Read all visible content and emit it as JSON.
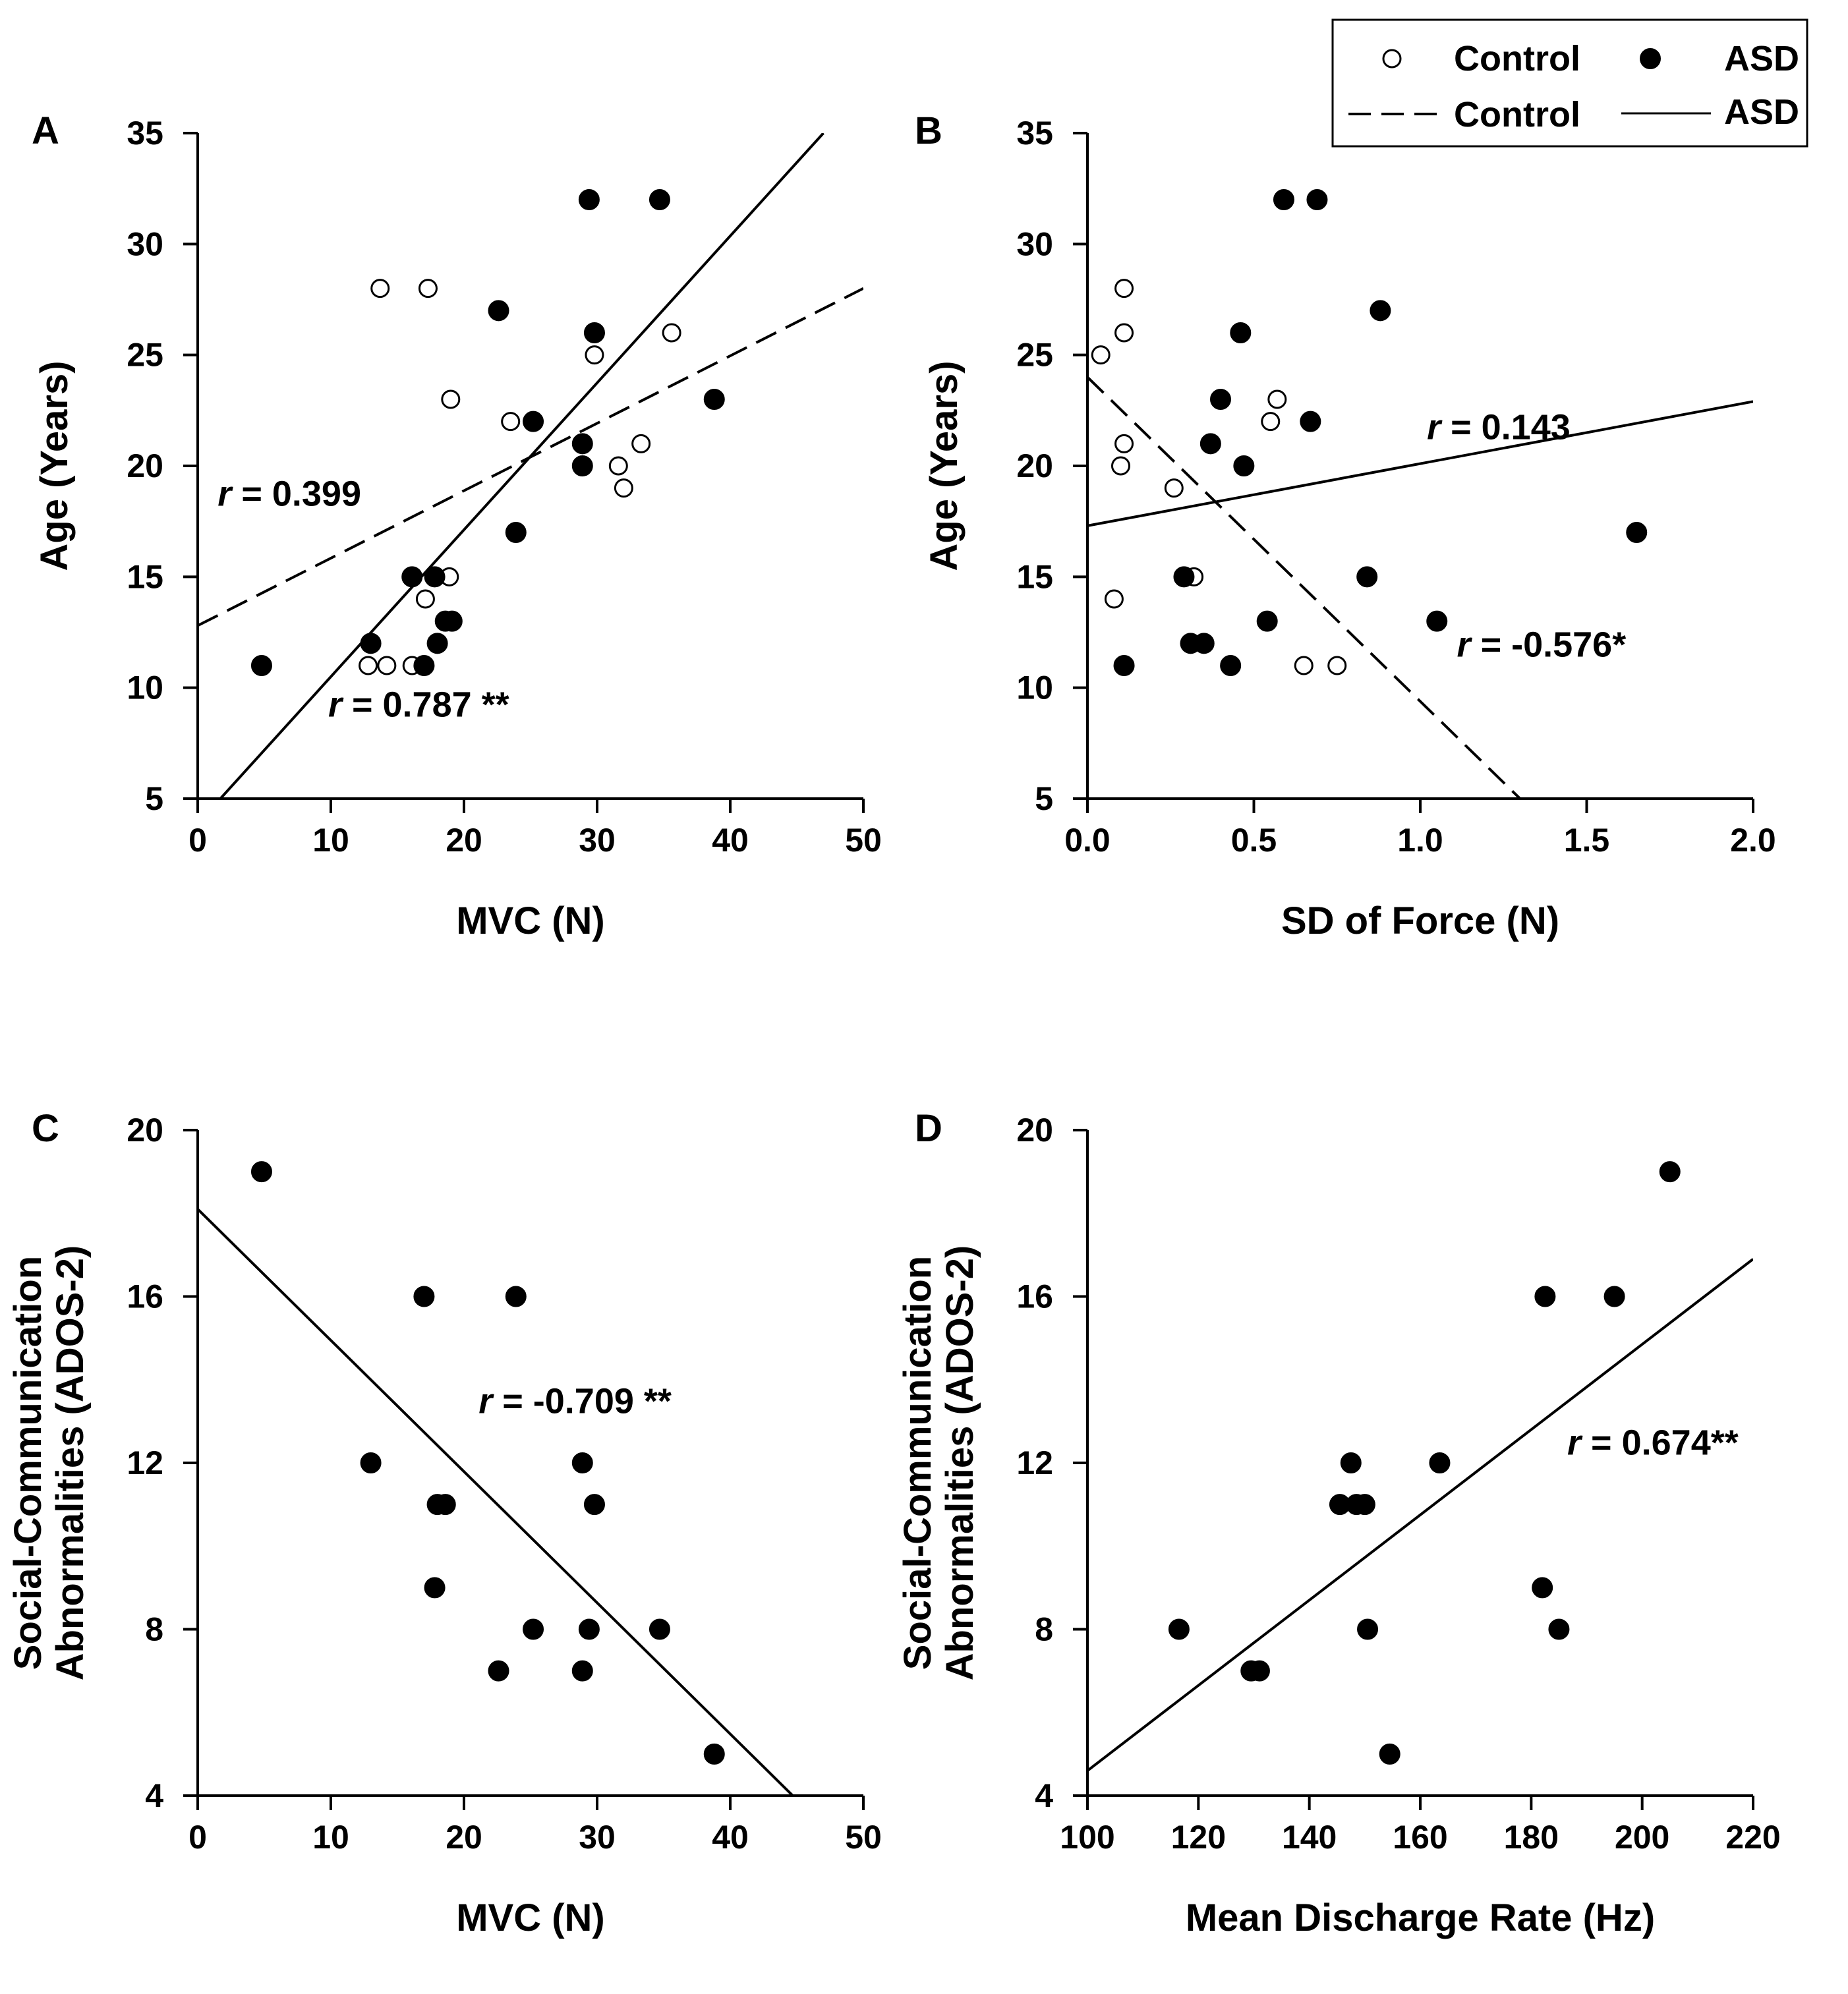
{
  "legend": {
    "entries": [
      {
        "key": "control_marker",
        "label": "Control",
        "marker": "open-circle"
      },
      {
        "key": "asd_marker",
        "label": "ASD",
        "marker": "filled-circle"
      },
      {
        "key": "control_line",
        "label": "Control",
        "line": "dashed"
      },
      {
        "key": "asd_line",
        "label": "ASD",
        "line": "solid"
      }
    ]
  },
  "chart_data": [
    {
      "panel": "A",
      "type": "scatter",
      "xlabel": "MVC (N)",
      "ylabel": "Age (Years)",
      "xlim": [
        0,
        50
      ],
      "ylim": [
        5,
        35
      ],
      "xticks": [
        "0",
        "10",
        "20",
        "30",
        "40",
        "50"
      ],
      "yticks": [
        "5",
        "10",
        "15",
        "20",
        "25",
        "30",
        "35"
      ],
      "series": [
        {
          "name": "Control",
          "marker": "open-circle",
          "points": [
            [
              13.7,
              28
            ],
            [
              17.3,
              28
            ],
            [
              19.0,
              23
            ],
            [
              23.5,
              22
            ],
            [
              29.8,
              25
            ],
            [
              35.6,
              26
            ],
            [
              31.6,
              20
            ],
            [
              32.0,
              19
            ],
            [
              33.3,
              21
            ],
            [
              17.1,
              14
            ],
            [
              18.9,
              15
            ],
            [
              12.8,
              11
            ],
            [
              14.2,
              11
            ],
            [
              16.1,
              11
            ]
          ],
          "fit": {
            "style": "dashed",
            "x": [
              0,
              50
            ],
            "y": [
              12.8,
              28.0
            ]
          }
        },
        {
          "name": "ASD",
          "marker": "filled-circle",
          "points": [
            [
              4.8,
              11
            ],
            [
              13.0,
              12
            ],
            [
              16.1,
              15
            ],
            [
              17.0,
              11
            ],
            [
              17.8,
              15
            ],
            [
              18.0,
              12
            ],
            [
              18.6,
              13
            ],
            [
              19.1,
              13
            ],
            [
              22.6,
              27
            ],
            [
              23.9,
              17
            ],
            [
              25.2,
              22
            ],
            [
              28.9,
              21
            ],
            [
              28.9,
              20
            ],
            [
              29.4,
              32
            ],
            [
              29.8,
              26
            ],
            [
              34.7,
              32
            ],
            [
              38.8,
              23
            ]
          ],
          "fit": {
            "style": "solid",
            "x": [
              1.7,
              47.0
            ],
            "y": [
              5.0,
              35.0
            ]
          }
        }
      ],
      "annotations": [
        {
          "r_label": "r",
          "rest": " = 0.399",
          "x": 1.5,
          "y": 18.2
        },
        {
          "r_label": "r",
          "rest": " = 0.787 **",
          "x": 9.8,
          "y": 8.7
        }
      ]
    },
    {
      "panel": "B",
      "type": "scatter",
      "xlabel": "SD of Force (N)",
      "ylabel": "Age (Years)",
      "xlim": [
        0.0,
        2.0
      ],
      "ylim": [
        5,
        35
      ],
      "xticks": [
        "0.0",
        "0.5",
        "1.0",
        "1.5",
        "2.0"
      ],
      "yticks": [
        "5",
        "10",
        "15",
        "20",
        "25",
        "30",
        "35"
      ],
      "series": [
        {
          "name": "Control",
          "marker": "open-circle",
          "points": [
            [
              0.04,
              25
            ],
            [
              0.11,
              28
            ],
            [
              0.11,
              26
            ],
            [
              0.11,
              21
            ],
            [
              0.1,
              20
            ],
            [
              0.26,
              19
            ],
            [
              0.55,
              22
            ],
            [
              0.57,
              23
            ],
            [
              0.32,
              15
            ],
            [
              0.08,
              14
            ],
            [
              0.65,
              11
            ],
            [
              0.75,
              11
            ]
          ],
          "fit": {
            "style": "dashed",
            "x": [
              0.0,
              1.3
            ],
            "y": [
              24.0,
              5.0
            ]
          }
        },
        {
          "name": "ASD",
          "marker": "filled-circle",
          "points": [
            [
              0.59,
              32
            ],
            [
              0.69,
              32
            ],
            [
              0.88,
              27
            ],
            [
              0.46,
              26
            ],
            [
              0.4,
              23
            ],
            [
              0.67,
              22
            ],
            [
              0.37,
              21
            ],
            [
              0.47,
              20
            ],
            [
              1.65,
              17
            ],
            [
              0.29,
              15
            ],
            [
              0.84,
              15
            ],
            [
              0.54,
              13
            ],
            [
              1.05,
              13
            ],
            [
              0.31,
              12
            ],
            [
              0.35,
              12
            ],
            [
              0.11,
              11
            ],
            [
              0.43,
              11
            ]
          ],
          "fit": {
            "style": "solid",
            "x": [
              0.0,
              2.0
            ],
            "y": [
              17.3,
              22.9
            ]
          }
        }
      ],
      "annotations": [
        {
          "r_label": "r",
          "rest": " = 0.143",
          "x": 1.02,
          "y": 21.2
        },
        {
          "r_label": "r",
          "rest": " = -0.576*",
          "x": 1.11,
          "y": 11.4
        }
      ]
    },
    {
      "panel": "C",
      "type": "scatter",
      "xlabel": "MVC (N)",
      "ylabel": [
        "Social-Communication",
        "Abnormalities (ADOS-2)"
      ],
      "xlim": [
        0,
        50
      ],
      "ylim": [
        4,
        20
      ],
      "xticks": [
        "0",
        "10",
        "20",
        "30",
        "40",
        "50"
      ],
      "yticks": [
        "4",
        "8",
        "12",
        "16",
        "20"
      ],
      "series": [
        {
          "name": "ASD",
          "marker": "filled-circle",
          "points": [
            [
              4.8,
              19
            ],
            [
              17.0,
              16
            ],
            [
              23.9,
              16
            ],
            [
              13.0,
              12
            ],
            [
              28.9,
              12
            ],
            [
              18.0,
              11
            ],
            [
              18.6,
              11
            ],
            [
              29.8,
              11
            ],
            [
              17.8,
              9
            ],
            [
              25.2,
              8
            ],
            [
              29.4,
              8
            ],
            [
              34.7,
              8
            ],
            [
              22.6,
              7
            ],
            [
              28.9,
              7
            ],
            [
              38.8,
              5
            ]
          ],
          "fit": {
            "style": "solid",
            "x": [
              0,
              44.7
            ],
            "y": [
              18.1,
              4.0
            ]
          }
        }
      ],
      "annotations": [
        {
          "r_label": "r",
          "rest": " = -0.709 **",
          "x": 21.1,
          "y": 13.2
        }
      ]
    },
    {
      "panel": "D",
      "type": "scatter",
      "xlabel": "Mean Discharge Rate (Hz)",
      "ylabel": [
        "Social-Communication",
        "Abnormalities (ADOS-2)"
      ],
      "xlim": [
        100,
        220
      ],
      "ylim": [
        4,
        20
      ],
      "xticks": [
        "100",
        "120",
        "140",
        "160",
        "180",
        "200",
        "220"
      ],
      "yticks": [
        "4",
        "8",
        "12",
        "16",
        "20"
      ],
      "series": [
        {
          "name": "ASD",
          "marker": "filled-circle",
          "points": [
            [
              205,
              19
            ],
            [
              182.5,
              16
            ],
            [
              195,
              16
            ],
            [
              147.5,
              12
            ],
            [
              163.5,
              12
            ],
            [
              145.5,
              11
            ],
            [
              148.5,
              11
            ],
            [
              150.0,
              11
            ],
            [
              182.0,
              9
            ],
            [
              116.5,
              8
            ],
            [
              150.5,
              8
            ],
            [
              185.0,
              8
            ],
            [
              129.5,
              7
            ],
            [
              131.0,
              7
            ],
            [
              154.5,
              5
            ]
          ],
          "fit": {
            "style": "solid",
            "x": [
              100,
              220
            ],
            "y": [
              4.6,
              16.9
            ]
          }
        }
      ],
      "annotations": [
        {
          "r_label": "r",
          "rest": " = 0.674**",
          "x": 186.5,
          "y": 12.2
        }
      ]
    }
  ]
}
